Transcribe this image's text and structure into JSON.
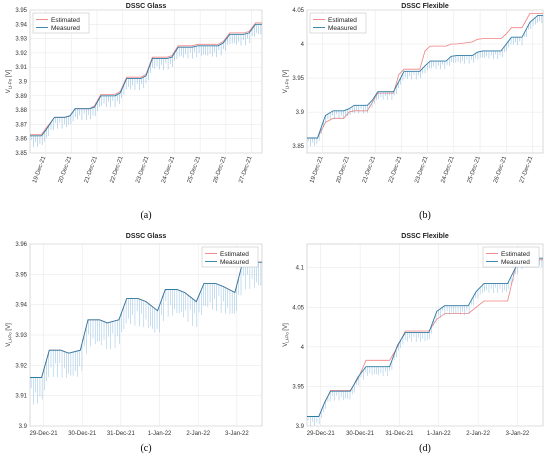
{
  "chart_data": [
    {
      "id": "a",
      "type": "line",
      "panel_label": "(a)",
      "title": "DSSC Glass",
      "ylabel": "V",
      "ylabel_sub": "Li-Po",
      "ylabel_unit": "[V]",
      "ylim": [
        3.85,
        3.95
      ],
      "yticks": [
        "3.85",
        "3.86",
        "3.87",
        "3.88",
        "3.89",
        "3.9",
        "3.91",
        "3.92",
        "3.93",
        "3.94",
        "3.95"
      ],
      "xlim": [
        0,
        9
      ],
      "xticks": [
        {
          "x": 0.6,
          "label": "19-Dec-21"
        },
        {
          "x": 1.6,
          "label": "20-Dec-21"
        },
        {
          "x": 2.6,
          "label": "21-Dec-21"
        },
        {
          "x": 3.6,
          "label": "22-Dec-21"
        },
        {
          "x": 4.6,
          "label": "23-Dec-21"
        },
        {
          "x": 5.6,
          "label": "24-Dec-21"
        },
        {
          "x": 6.6,
          "label": "25-Dec-21"
        },
        {
          "x": 7.6,
          "label": "26-Dec-21"
        },
        {
          "x": 8.6,
          "label": "27-Dec-21"
        }
      ],
      "x_tick_rotation": -70,
      "legend": {
        "position": "top-left",
        "entries": [
          "Estimated",
          "Measured"
        ]
      },
      "series": [
        {
          "name": "Estimated",
          "color": "#f08080",
          "x": [
            0,
            0.45,
            0.65,
            0.95,
            1.35,
            1.55,
            1.75,
            2.3,
            2.5,
            2.75,
            3.3,
            3.5,
            3.75,
            4.3,
            4.5,
            4.75,
            5.3,
            5.5,
            5.75,
            6.3,
            6.5,
            6.75,
            7.3,
            7.5,
            7.75,
            8.3,
            8.5,
            8.75,
            9
          ],
          "y": [
            3.863,
            3.863,
            3.868,
            3.875,
            3.875,
            3.876,
            3.881,
            3.881,
            3.883,
            3.891,
            3.891,
            3.893,
            3.903,
            3.903,
            3.905,
            3.917,
            3.917,
            3.918,
            3.925,
            3.925,
            3.926,
            3.926,
            3.926,
            3.928,
            3.934,
            3.934,
            3.935,
            3.941,
            3.941
          ]
        },
        {
          "name": "Measured",
          "color": "#2e7aa3",
          "spike_color": "#6fa8d6",
          "spike_depth": 0.008,
          "x": [
            0,
            0.45,
            0.65,
            0.95,
            1.35,
            1.55,
            1.75,
            2.3,
            2.5,
            2.75,
            3.3,
            3.5,
            3.75,
            4.3,
            4.5,
            4.75,
            5.3,
            5.5,
            5.75,
            6.3,
            6.5,
            6.75,
            7.3,
            7.5,
            7.75,
            8.3,
            8.5,
            8.75,
            9
          ],
          "y": [
            3.862,
            3.862,
            3.867,
            3.875,
            3.875,
            3.876,
            3.881,
            3.881,
            3.882,
            3.89,
            3.89,
            3.892,
            3.902,
            3.902,
            3.904,
            3.916,
            3.916,
            3.917,
            3.924,
            3.924,
            3.925,
            3.925,
            3.925,
            3.927,
            3.933,
            3.933,
            3.934,
            3.94,
            3.94
          ]
        }
      ]
    },
    {
      "id": "b",
      "type": "line",
      "panel_label": "(b)",
      "title": "DSSC Flexible",
      "ylabel": "V",
      "ylabel_sub": "Li-Po",
      "ylabel_unit": "[V]",
      "ylim": [
        3.84,
        4.05
      ],
      "yticks": [
        "3.85",
        "3.9",
        "3.95",
        "4",
        "4.05"
      ],
      "ytick_values": [
        3.85,
        3.9,
        3.95,
        4.0,
        4.05
      ],
      "xlim": [
        0,
        9
      ],
      "xticks": [
        {
          "x": 0.6,
          "label": "19-Dec-21"
        },
        {
          "x": 1.6,
          "label": "20-Dec-21"
        },
        {
          "x": 2.6,
          "label": "21-Dec-21"
        },
        {
          "x": 3.6,
          "label": "22-Dec-21"
        },
        {
          "x": 4.6,
          "label": "23-Dec-21"
        },
        {
          "x": 5.6,
          "label": "24-Dec-21"
        },
        {
          "x": 6.6,
          "label": "25-Dec-21"
        },
        {
          "x": 7.6,
          "label": "26-Dec-21"
        },
        {
          "x": 8.6,
          "label": "27-Dec-21"
        }
      ],
      "x_tick_rotation": -70,
      "legend": {
        "position": "top-left",
        "entries": [
          "Estimated",
          "Measured"
        ]
      },
      "series": [
        {
          "name": "Estimated",
          "color": "#f08080",
          "x": [
            0,
            0.4,
            0.7,
            1.0,
            1.4,
            1.6,
            1.8,
            2.3,
            2.5,
            2.7,
            3.3,
            3.5,
            3.7,
            4.3,
            4.5,
            4.7,
            5.3,
            5.5,
            5.7,
            6.3,
            6.5,
            6.7,
            7.4,
            7.6,
            7.8,
            8.2,
            8.5,
            8.8,
            9
          ],
          "y": [
            3.862,
            3.862,
            3.885,
            3.891,
            3.891,
            3.9,
            3.902,
            3.902,
            3.915,
            3.928,
            3.928,
            3.955,
            3.963,
            3.963,
            3.99,
            3.997,
            3.997,
            4.0,
            4.0,
            4.003,
            4.007,
            4.008,
            4.008,
            4.015,
            4.024,
            4.024,
            4.045,
            4.045,
            4.045
          ]
        },
        {
          "name": "Measured",
          "color": "#2e7aa3",
          "spike_color": "#6fa8d6",
          "spike_depth": 0.012,
          "x": [
            0,
            0.4,
            0.7,
            1.0,
            1.4,
            1.6,
            1.8,
            2.3,
            2.5,
            2.7,
            3.3,
            3.5,
            3.7,
            4.3,
            4.5,
            4.7,
            5.3,
            5.5,
            5.7,
            6.3,
            6.5,
            6.7,
            7.4,
            7.6,
            7.8,
            8.2,
            8.5,
            8.8,
            9
          ],
          "y": [
            3.862,
            3.862,
            3.895,
            3.902,
            3.902,
            3.905,
            3.91,
            3.91,
            3.918,
            3.93,
            3.93,
            3.945,
            3.96,
            3.96,
            3.968,
            3.975,
            3.975,
            3.982,
            3.983,
            3.983,
            3.988,
            3.99,
            3.99,
            4.0,
            4.01,
            4.01,
            4.032,
            4.042,
            4.042
          ]
        }
      ]
    },
    {
      "id": "c",
      "type": "line",
      "panel_label": "(c)",
      "title": "DSSC Glass",
      "ylabel": "V",
      "ylabel_sub": "Li-Po",
      "ylabel_unit": "[V]",
      "ylim": [
        3.9,
        3.96
      ],
      "yticks": [
        "3.9",
        "3.91",
        "3.92",
        "3.93",
        "3.94",
        "3.95",
        "3.96"
      ],
      "ytick_values": [
        3.9,
        3.91,
        3.92,
        3.93,
        3.94,
        3.95,
        3.96
      ],
      "xlim": [
        0,
        6
      ],
      "xticks": [
        {
          "x": 0.35,
          "label": "29-Dec-21"
        },
        {
          "x": 1.35,
          "label": "30-Dec-21"
        },
        {
          "x": 2.35,
          "label": "31-Dec-21"
        },
        {
          "x": 3.35,
          "label": "1-Jan-22"
        },
        {
          "x": 4.35,
          "label": "2-Jan-22"
        },
        {
          "x": 5.35,
          "label": "3-Jan-22"
        }
      ],
      "x_tick_rotation": 0,
      "legend": {
        "position": "top-right",
        "entries": [
          "Estimated",
          "Measured"
        ]
      },
      "series": [
        {
          "name": "Estimated",
          "color": "#f08080",
          "x": [
            0,
            0.15,
            0.3,
            0.5,
            0.8,
            1.0,
            1.3,
            1.5,
            1.8,
            2.0,
            2.3,
            2.5,
            2.8,
            3.0,
            3.3,
            3.5,
            3.8,
            4.0,
            4.3,
            4.5,
            4.8,
            5.0,
            5.3,
            5.5,
            5.8,
            6.0
          ],
          "y": [
            3.916,
            3.916,
            3.916,
            3.925,
            3.925,
            3.924,
            3.925,
            3.935,
            3.935,
            3.934,
            3.935,
            3.942,
            3.942,
            3.941,
            3.938,
            3.945,
            3.945,
            3.944,
            3.941,
            3.947,
            3.947,
            3.946,
            3.944,
            3.954,
            3.954,
            3.954
          ]
        },
        {
          "name": "Measured",
          "color": "#2e7aa3",
          "spike_color": "#7fb4dd",
          "spike_depth": 0.009,
          "x": [
            0,
            0.15,
            0.3,
            0.5,
            0.8,
            1.0,
            1.3,
            1.5,
            1.8,
            2.0,
            2.3,
            2.5,
            2.8,
            3.0,
            3.3,
            3.5,
            3.8,
            4.0,
            4.3,
            4.5,
            4.8,
            5.0,
            5.3,
            5.5,
            5.8,
            6.0
          ],
          "y": [
            3.916,
            3.916,
            3.916,
            3.925,
            3.925,
            3.924,
            3.925,
            3.935,
            3.935,
            3.934,
            3.935,
            3.942,
            3.942,
            3.941,
            3.938,
            3.945,
            3.945,
            3.944,
            3.941,
            3.947,
            3.947,
            3.946,
            3.944,
            3.954,
            3.954,
            3.954
          ]
        }
      ]
    },
    {
      "id": "d",
      "type": "line",
      "panel_label": "(d)",
      "title": "DSSC Flexible",
      "ylabel": "V",
      "ylabel_sub": "Li-Po",
      "ylabel_unit": "[V]",
      "ylim": [
        3.9,
        4.13
      ],
      "yticks": [
        "3.9",
        "3.95",
        "4",
        "4.05",
        "4.1"
      ],
      "ytick_values": [
        3.9,
        3.95,
        4.0,
        4.05,
        4.1
      ],
      "xlim": [
        0,
        6
      ],
      "xticks": [
        {
          "x": 0.35,
          "label": "29-Dec-21"
        },
        {
          "x": 1.35,
          "label": "30-Dec-21"
        },
        {
          "x": 2.35,
          "label": "31-Dec-21"
        },
        {
          "x": 3.35,
          "label": "1-Jan-22"
        },
        {
          "x": 4.35,
          "label": "2-Jan-22"
        },
        {
          "x": 5.35,
          "label": "3-Jan-22"
        }
      ],
      "x_tick_rotation": 0,
      "legend": {
        "position": "top-right",
        "entries": [
          "Estimated",
          "Measured"
        ]
      },
      "series": [
        {
          "name": "Estimated",
          "color": "#f08080",
          "x": [
            0,
            0.3,
            0.45,
            0.6,
            1.1,
            1.3,
            1.5,
            2.1,
            2.3,
            2.5,
            3.1,
            3.3,
            3.5,
            4.1,
            4.3,
            4.5,
            5.1,
            5.3,
            5.5,
            6.0
          ],
          "y": [
            3.912,
            3.912,
            3.93,
            3.945,
            3.945,
            3.96,
            3.983,
            3.983,
            4.0,
            4.02,
            4.02,
            4.035,
            4.042,
            4.042,
            4.05,
            4.058,
            4.058,
            4.1,
            4.11,
            4.11
          ]
        },
        {
          "name": "Measured",
          "color": "#2e7aa3",
          "spike_color": "#7fb4dd",
          "spike_depth": 0.012,
          "x": [
            0,
            0.3,
            0.45,
            0.6,
            1.1,
            1.3,
            1.5,
            2.1,
            2.3,
            2.5,
            3.1,
            3.3,
            3.5,
            4.1,
            4.3,
            4.5,
            5.1,
            5.3,
            5.5,
            6.0
          ],
          "y": [
            3.912,
            3.912,
            3.93,
            3.944,
            3.944,
            3.962,
            3.975,
            3.975,
            4.002,
            4.018,
            4.018,
            4.045,
            4.052,
            4.052,
            4.07,
            4.08,
            4.08,
            4.1,
            4.112,
            4.112
          ]
        }
      ]
    }
  ]
}
